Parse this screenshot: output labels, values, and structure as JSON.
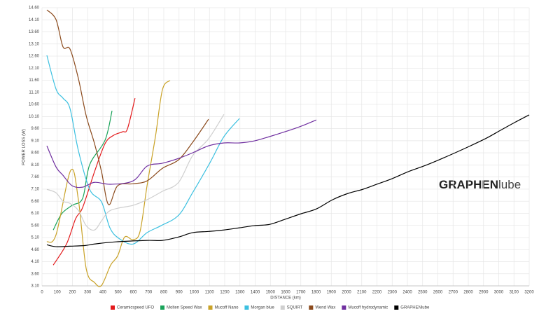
{
  "chart_data": {
    "type": "line",
    "x_label": "DISTANCE (km)",
    "y_label": "POWER LOSS (W)",
    "annotation": {
      "bold": "GRAPHEN",
      "light": "lube"
    },
    "xlim": [
      0,
      3200
    ],
    "xticks": [
      0,
      100,
      200,
      300,
      400,
      500,
      600,
      700,
      800,
      900,
      1000,
      1100,
      1200,
      1300,
      1400,
      1500,
      1600,
      1700,
      1800,
      1900,
      2000,
      2100,
      2200,
      2300,
      2400,
      2500,
      2600,
      2700,
      2800,
      2900,
      3000,
      3100,
      3200
    ],
    "ylim": [
      3.1,
      14.6
    ],
    "yticks": [
      {
        "value": 3.1,
        "label": "3.10"
      },
      {
        "value": 3.6,
        "label": "3.60"
      },
      {
        "value": 4.1,
        "label": "4.10"
      },
      {
        "value": 4.6,
        "label": "4.60"
      },
      {
        "value": 5.1,
        "label": "5.10"
      },
      {
        "value": 5.6,
        "label": "5.60"
      },
      {
        "value": 6.1,
        "label": "6.10"
      },
      {
        "value": 6.6,
        "label": "6.60"
      },
      {
        "value": 7.1,
        "label": "7.10"
      },
      {
        "value": 7.6,
        "label": "7.60"
      },
      {
        "value": 8.1,
        "label": "8.10"
      },
      {
        "value": 8.6,
        "label": "8.60"
      },
      {
        "value": 9.1,
        "label": "9.10"
      },
      {
        "value": 9.6,
        "label": "9.60"
      },
      {
        "value": 10.1,
        "label": "10.10"
      },
      {
        "value": 10.6,
        "label": "10.60"
      },
      {
        "value": 11.1,
        "label": "11.10"
      },
      {
        "value": 11.6,
        "label": "11.60"
      },
      {
        "value": 12.1,
        "label": "12.10"
      },
      {
        "value": 12.6,
        "label": "12.60"
      },
      {
        "value": 13.1,
        "label": "13.10"
      },
      {
        "value": 13.6,
        "label": "13.60"
      },
      {
        "value": 14.1,
        "label": "14.10"
      },
      {
        "value": 14.6,
        "label": "14.60"
      }
    ],
    "grid": true,
    "legend": "bottom",
    "series": [
      {
        "name": "Ceramicspeed UFO",
        "color": "#e31a1c",
        "x": [
          74,
          161,
          221,
          267,
          345,
          414,
          469,
          529,
          561,
          611
        ],
        "values": [
          3.96,
          4.83,
          5.88,
          6.34,
          7.82,
          8.98,
          9.32,
          9.47,
          9.59,
          10.86
        ]
      },
      {
        "name": "Molten Speed Wax",
        "color": "#1aa35a",
        "x": [
          74,
          129,
          198,
          267,
          313,
          414,
          460
        ],
        "values": [
          5.41,
          6.08,
          6.43,
          6.72,
          8.11,
          9.12,
          10.34
        ]
      },
      {
        "name": "Mucoff Nano",
        "color": "#c9a227",
        "x": [
          32,
          92,
          189,
          239,
          290,
          345,
          391,
          451,
          497,
          543,
          598,
          644,
          690,
          745,
          791,
          841
        ],
        "values": [
          4.92,
          5.21,
          7.88,
          6.66,
          3.82,
          3.24,
          3.12,
          3.96,
          4.34,
          5.12,
          5.01,
          5.35,
          7.24,
          9.27,
          11.21,
          11.59
        ]
      },
      {
        "name": "Morgan blue",
        "color": "#3cc0e0",
        "x": [
          32,
          92,
          138,
          184,
          239,
          313,
          391,
          446,
          506,
          598,
          690,
          782,
          897,
          989,
          1103,
          1195,
          1297
        ],
        "values": [
          12.63,
          11.24,
          10.86,
          10.43,
          8.69,
          7.09,
          6.57,
          5.5,
          5.06,
          4.83,
          5.3,
          5.59,
          6.02,
          6.95,
          8.19,
          9.27,
          10.02
        ]
      },
      {
        "name": "SQUIRT",
        "color": "#cfcfcf",
        "x": [
          32,
          92,
          138,
          184,
          239,
          290,
          345,
          391,
          437,
          497,
          598,
          690,
          791,
          897,
          989,
          1094,
          1195
        ],
        "values": [
          7.09,
          6.95,
          6.6,
          6.51,
          6.22,
          5.59,
          5.41,
          5.79,
          6.17,
          6.31,
          6.43,
          6.66,
          7.01,
          7.38,
          8.48,
          9.18,
          10.19
        ]
      },
      {
        "name": "Wend Wax",
        "color": "#8b4a1c",
        "x": [
          32,
          92,
          138,
          184,
          239,
          290,
          345,
          391,
          437,
          497,
          598,
          690,
          791,
          897,
          989,
          1094
        ],
        "values": [
          14.51,
          14.11,
          12.98,
          12.89,
          11.67,
          10.14,
          8.98,
          7.82,
          6.46,
          7.24,
          7.32,
          7.44,
          7.96,
          8.31,
          9.03,
          9.99
        ]
      },
      {
        "name": "Mucoff hydrodynamic",
        "color": "#7030a0",
        "x": [
          32,
          92,
          138,
          198,
          267,
          345,
          451,
          598,
          690,
          791,
          897,
          989,
          1094,
          1195,
          1297,
          1393,
          1494,
          1595,
          1701,
          1802
        ],
        "values": [
          8.89,
          8.02,
          7.67,
          7.24,
          7.18,
          7.38,
          7.3,
          7.44,
          8.05,
          8.17,
          8.37,
          8.6,
          8.89,
          9.01,
          9.01,
          9.09,
          9.27,
          9.47,
          9.7,
          9.96
        ]
      },
      {
        "name": "GRAPHENlube",
        "color": "#000000",
        "x": [
          32,
          92,
          184,
          285,
          345,
          483,
          690,
          791,
          897,
          989,
          1094,
          1195,
          1297,
          1393,
          1494,
          1595,
          1701,
          1802,
          1908,
          2009,
          2106,
          2207,
          2299,
          2405,
          2506,
          2607,
          2713,
          2814,
          2920,
          3011,
          3103,
          3200
        ],
        "values": [
          4.8,
          4.72,
          4.74,
          4.77,
          4.83,
          4.92,
          4.98,
          4.98,
          5.12,
          5.3,
          5.35,
          5.41,
          5.5,
          5.59,
          5.64,
          5.85,
          6.08,
          6.28,
          6.66,
          6.92,
          7.09,
          7.32,
          7.53,
          7.82,
          8.05,
          8.31,
          8.6,
          8.89,
          9.21,
          9.53,
          9.85,
          10.17
        ]
      }
    ]
  }
}
